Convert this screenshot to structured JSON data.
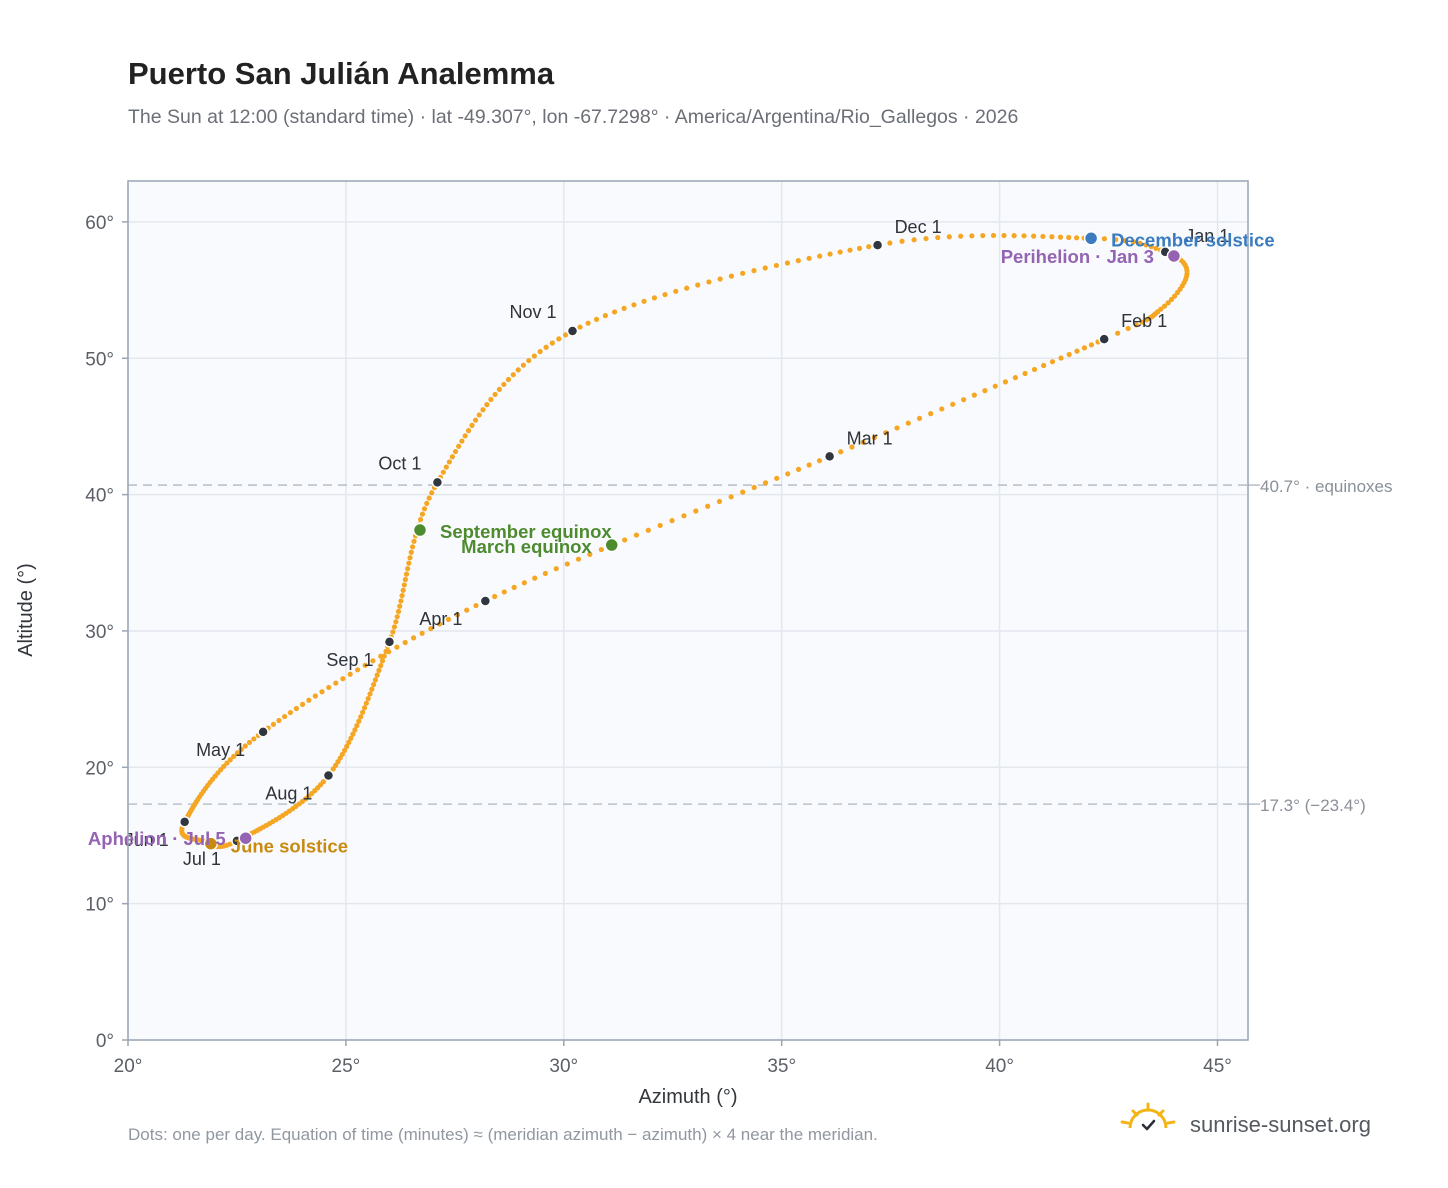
{
  "page": {
    "title": "Puerto San Julián Analemma",
    "subtitle": "The Sun at 12:00 (standard time) · lat -49.307°, lon -67.7298° · America/Argentina/Rio_Gallegos · 2026",
    "footnote": "Dots: one per day. Equation of time (minutes) ≈ (meridian azimuth − azimuth) × 4 near the meridian.",
    "brand": "sunrise-sunset.org",
    "brand_icon": "sun-check-icon"
  },
  "colors": {
    "curve": "#f5a623",
    "month_marker": "#2f3640",
    "equinox": "#4e8b2f",
    "june_solstice": "#c98a12",
    "december_solstice": "#3b7bbf",
    "apsis": "#9463b3",
    "plot_bg": "#f8fafd",
    "grid": "#e3e8ef",
    "frame": "#9aa5b3",
    "reference_line": "#b9c2cc"
  },
  "chart_data": {
    "type": "scatter",
    "xlabel": "Azimuth (°)",
    "ylabel": "Altitude (°)",
    "xlim": [
      20,
      45.7
    ],
    "ylim": [
      0,
      63
    ],
    "x_ticks": [
      20,
      25,
      30,
      35,
      40,
      45
    ],
    "x_tick_labels": [
      "20°",
      "25°",
      "30°",
      "35°",
      "40°",
      "45°"
    ],
    "y_ticks": [
      0,
      10,
      20,
      30,
      40,
      50,
      60
    ],
    "y_tick_labels": [
      "0°",
      "10°",
      "20°",
      "30°",
      "40°",
      "50°",
      "60°"
    ],
    "grid": true,
    "reference_lines": [
      {
        "y": 40.7,
        "label": "40.7° · equinoxes"
      },
      {
        "y": 17.3,
        "label": "17.3° (−23.4°)"
      }
    ],
    "month_markers": [
      {
        "label": "Jan 1",
        "x": 43.8,
        "y": 57.8
      },
      {
        "label": "Feb 1",
        "x": 42.4,
        "y": 51.4
      },
      {
        "label": "Mar 1",
        "x": 36.1,
        "y": 42.8
      },
      {
        "label": "Apr 1",
        "x": 28.2,
        "y": 32.2
      },
      {
        "label": "May 1",
        "x": 23.1,
        "y": 22.6
      },
      {
        "label": "Jun 1",
        "x": 21.3,
        "y": 16.0
      },
      {
        "label": "Jul 1",
        "x": 22.5,
        "y": 14.6
      },
      {
        "label": "Aug 1",
        "x": 24.6,
        "y": 19.4
      },
      {
        "label": "Sep 1",
        "x": 26.0,
        "y": 29.2
      },
      {
        "label": "Oct 1",
        "x": 27.1,
        "y": 40.9
      },
      {
        "label": "Nov 1",
        "x": 30.2,
        "y": 52.0
      },
      {
        "label": "Dec 1",
        "x": 37.2,
        "y": 58.3
      }
    ],
    "events": [
      {
        "label": "March equinox",
        "x": 31.1,
        "y": 36.3,
        "color_key": "equinox"
      },
      {
        "label": "September equinox",
        "x": 26.7,
        "y": 37.4,
        "color_key": "equinox"
      },
      {
        "label": "June solstice",
        "x": 21.9,
        "y": 14.4,
        "color_key": "june_solstice"
      },
      {
        "label": "December solstice",
        "x": 42.1,
        "y": 58.8,
        "color_key": "december_solstice"
      },
      {
        "label": "Perihelion · Jan 3",
        "x": 44.0,
        "y": 57.5,
        "color_key": "apsis"
      },
      {
        "label": "Aphelion · Jul 5",
        "x": 22.7,
        "y": 14.8,
        "color_key": "apsis"
      }
    ],
    "curve_note": "one dot per day of 2026"
  }
}
